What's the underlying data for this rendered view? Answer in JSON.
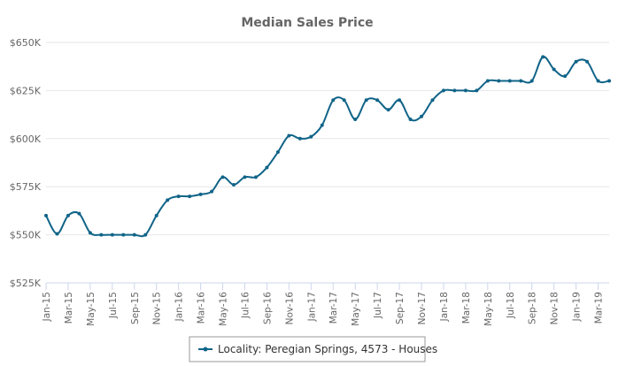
{
  "chart_data": {
    "type": "line",
    "title": "Median Sales Price",
    "xlabel": "",
    "ylabel": "",
    "ylim": [
      525000,
      650000
    ],
    "yticks": [
      {
        "value": 525000,
        "label": "$525K"
      },
      {
        "value": 550000,
        "label": "$550K"
      },
      {
        "value": 575000,
        "label": "$575K"
      },
      {
        "value": 600000,
        "label": "$600K"
      },
      {
        "value": 625000,
        "label": "$625K"
      },
      {
        "value": 650000,
        "label": "$650K"
      }
    ],
    "x": [
      "2015-01",
      "2015-02",
      "2015-03",
      "2015-04",
      "2015-05",
      "2015-06",
      "2015-07",
      "2015-08",
      "2015-09",
      "2015-10",
      "2015-11",
      "2015-12",
      "2016-01",
      "2016-02",
      "2016-03",
      "2016-04",
      "2016-05",
      "2016-06",
      "2016-07",
      "2016-08",
      "2016-09",
      "2016-10",
      "2016-11",
      "2016-12",
      "2017-01",
      "2017-02",
      "2017-03",
      "2017-04",
      "2017-05",
      "2017-06",
      "2017-07",
      "2017-08",
      "2017-09",
      "2017-10",
      "2017-11",
      "2017-12",
      "2018-01",
      "2018-02",
      "2018-03",
      "2018-04",
      "2018-05",
      "2018-06",
      "2018-07",
      "2018-08",
      "2018-09",
      "2018-10",
      "2018-11",
      "2018-12",
      "2019-01",
      "2019-02",
      "2019-03",
      "2019-04"
    ],
    "xtick_labels": [
      "Jan-15",
      "Mar-15",
      "May-15",
      "Jul-15",
      "Sep-15",
      "Nov-15",
      "Jan-16",
      "Mar-16",
      "May-16",
      "Jul-16",
      "Sep-16",
      "Nov-16",
      "Jan-17",
      "Mar-17",
      "May-17",
      "Jul-17",
      "Sep-17",
      "Nov-17",
      "Jan-18",
      "Mar-18",
      "May-18",
      "Jul-18",
      "Sep-18",
      "Nov-18",
      "Jan-19",
      "Mar-19"
    ],
    "series": [
      {
        "name": "Locality: Peregian Springs, 4573 - Houses",
        "color": "#106488",
        "values": [
          560000,
          550500,
          560000,
          561000,
          551000,
          550000,
          550000,
          550000,
          550000,
          550000,
          560000,
          568000,
          570000,
          570000,
          571000,
          572500,
          580000,
          576000,
          580000,
          580000,
          585000,
          593000,
          601500,
          600000,
          601000,
          607000,
          620000,
          620000,
          610000,
          620000,
          620000,
          615000,
          620000,
          610000,
          611500,
          620000,
          625000,
          625000,
          625000,
          625000,
          630000,
          630000,
          630000,
          630000,
          630000,
          642500,
          636000,
          632500,
          640000,
          640000,
          630000,
          630000
        ]
      }
    ],
    "grid": true,
    "legend_position": "bottom-center"
  }
}
